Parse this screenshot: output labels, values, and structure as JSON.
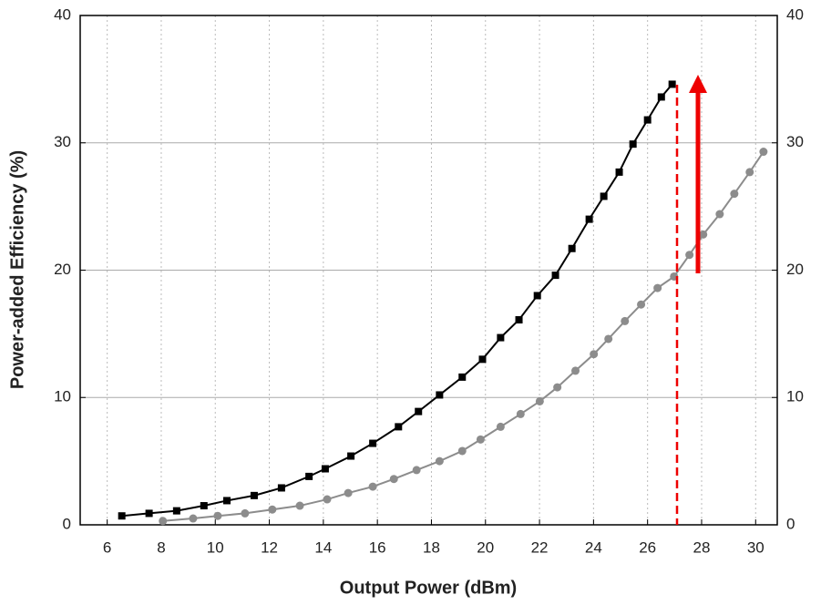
{
  "chart_data": {
    "type": "line",
    "xlabel": "Output Power (dBm)",
    "ylabel": "Power-added Efficiency (%)",
    "xlim": [
      5,
      30.8
    ],
    "xticks": [
      6,
      8,
      10,
      12,
      14,
      16,
      18,
      20,
      22,
      24,
      26,
      28,
      30
    ],
    "ylim": [
      0,
      40
    ],
    "yticks": [
      0,
      10,
      20,
      30,
      40
    ],
    "y2lim": [
      0,
      40
    ],
    "y2ticks": [
      0,
      10,
      20,
      30,
      40
    ],
    "grid": true,
    "series": [
      {
        "color": "#000000",
        "marker": "square",
        "x": [
          6.54,
          7.55,
          8.57,
          9.58,
          10.43,
          11.44,
          12.45,
          13.47,
          14.07,
          15.02,
          15.83,
          16.78,
          17.52,
          18.3,
          19.14,
          19.89,
          20.56,
          21.24,
          21.92,
          22.59,
          23.2,
          23.84,
          24.38,
          24.95,
          25.46,
          26.0,
          26.51,
          26.91
        ],
        "values": [
          0.7,
          0.9,
          1.1,
          1.5,
          1.9,
          2.3,
          2.9,
          3.8,
          4.4,
          5.4,
          6.4,
          7.7,
          8.9,
          10.2,
          11.6,
          13.0,
          14.7,
          16.1,
          18.0,
          19.6,
          21.7,
          24.0,
          25.8,
          27.7,
          29.9,
          31.8,
          33.6,
          34.6
        ]
      },
      {
        "color": "#8c8c8c",
        "marker": "circle",
        "x": [
          8.06,
          9.18,
          10.09,
          11.1,
          12.11,
          13.13,
          14.14,
          14.92,
          15.83,
          16.61,
          17.45,
          18.3,
          19.14,
          19.82,
          20.56,
          21.3,
          22.01,
          22.66,
          23.33,
          24.01,
          24.55,
          25.16,
          25.76,
          26.37,
          26.98,
          27.55,
          28.06,
          28.67,
          29.21,
          29.78,
          30.29
        ],
        "values": [
          0.3,
          0.5,
          0.7,
          0.9,
          1.2,
          1.5,
          2.0,
          2.5,
          3.0,
          3.6,
          4.3,
          5.0,
          5.8,
          6.7,
          7.7,
          8.7,
          9.7,
          10.8,
          12.1,
          13.4,
          14.6,
          16.0,
          17.3,
          18.6,
          19.5,
          21.2,
          22.8,
          24.4,
          26.0,
          27.7,
          29.3
        ]
      }
    ]
  }
}
